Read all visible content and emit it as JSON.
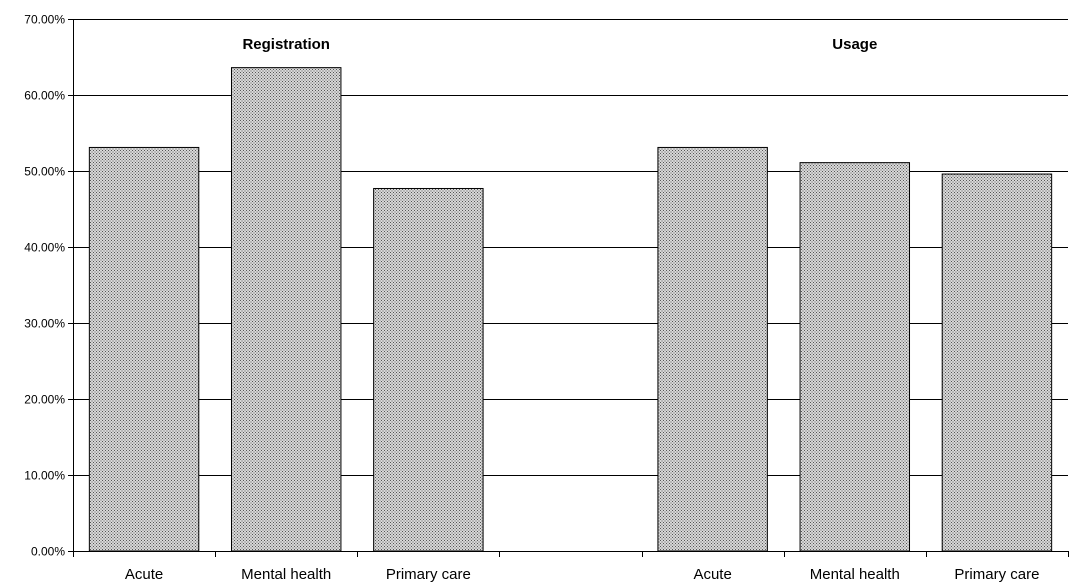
{
  "chart_data": {
    "type": "bar",
    "title": "",
    "xlabel": "",
    "ylabel": "",
    "ylim": [
      0,
      0.7
    ],
    "y_tick_labels": [
      "0.00%",
      "10.00%",
      "20.00%",
      "30.00%",
      "40.00%",
      "50.00%",
      "60.00%",
      "70.00%"
    ],
    "grid": true,
    "legend": "none",
    "bar_pattern": "dotted",
    "colors": {
      "bar_fill": "#d9d9d9",
      "bar_dots": "#555555",
      "bar_stroke": "#000000",
      "gridline": "#000000",
      "axis": "#000000"
    },
    "groups": [
      {
        "label": "Registration",
        "categories": [
          "Acute",
          "Mental health",
          "Primary care"
        ],
        "values": [
          0.531,
          0.636,
          0.477
        ]
      },
      {
        "label": "Usage",
        "categories": [
          "Acute",
          "Mental health",
          "Primary care"
        ],
        "values": [
          0.531,
          0.511,
          0.496
        ]
      }
    ],
    "categories": [
      "Acute",
      "Mental health",
      "Primary care",
      "",
      "Acute",
      "Mental health",
      "Primary care"
    ],
    "values": [
      0.531,
      0.636,
      0.477,
      null,
      0.531,
      0.511,
      0.496
    ]
  }
}
